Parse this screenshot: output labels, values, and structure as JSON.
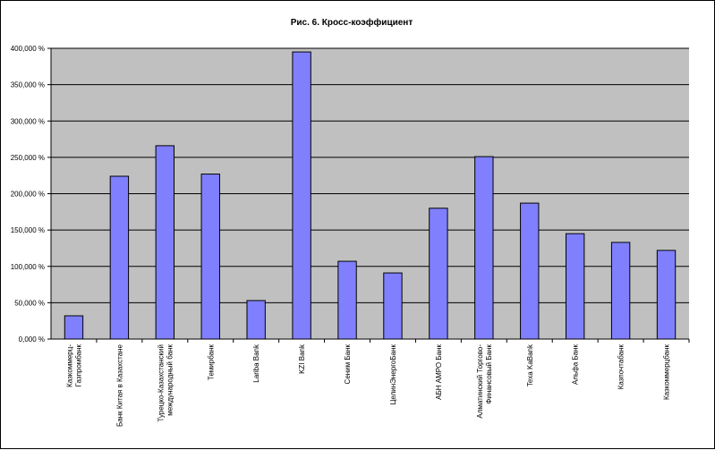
{
  "chart_data": {
    "type": "bar",
    "title": "Рис. 6. Кросс-коэффициент",
    "xlabel": "",
    "ylabel": "",
    "ylim": [
      0,
      400
    ],
    "y_ticks": [
      0,
      50,
      100,
      150,
      200,
      250,
      300,
      350,
      400
    ],
    "y_tick_labels": [
      "0,000 %",
      "50,000 %",
      "100,000 %",
      "150,000 %",
      "200,000 %",
      "250,000 %",
      "300,000 %",
      "350,000 %",
      "400,000 %"
    ],
    "grid": true,
    "legend": "none",
    "colors": {
      "bar_fill": "#8080ff",
      "bar_stroke": "#000000",
      "plot_background": "#c0c0c0",
      "gridline": "#000000"
    },
    "categories": [
      [
        "Казкоммерц-",
        "Газпромбанк"
      ],
      [
        "Банк Китая в Казахстане"
      ],
      [
        "Турецко-Казахстанский",
        "международный банк"
      ],
      [
        "Темирбанк"
      ],
      [
        "Lariba Bank"
      ],
      [
        "KZI Bank"
      ],
      [
        "Сеним Банк"
      ],
      [
        "ЦелинЭнергоБанк"
      ],
      [
        "АБН АМРО Банк"
      ],
      [
        "Алматинский Торгово-",
        "Финансовый Банк"
      ],
      [
        "Texa KaBank"
      ],
      [
        "Альфа Банк"
      ],
      [
        "Казпочтабанк"
      ],
      [
        "Казкоммерцбанк"
      ]
    ],
    "values": [
      32,
      224,
      266,
      227,
      53,
      395,
      107,
      91,
      180,
      251,
      187,
      145,
      133,
      122
    ]
  }
}
